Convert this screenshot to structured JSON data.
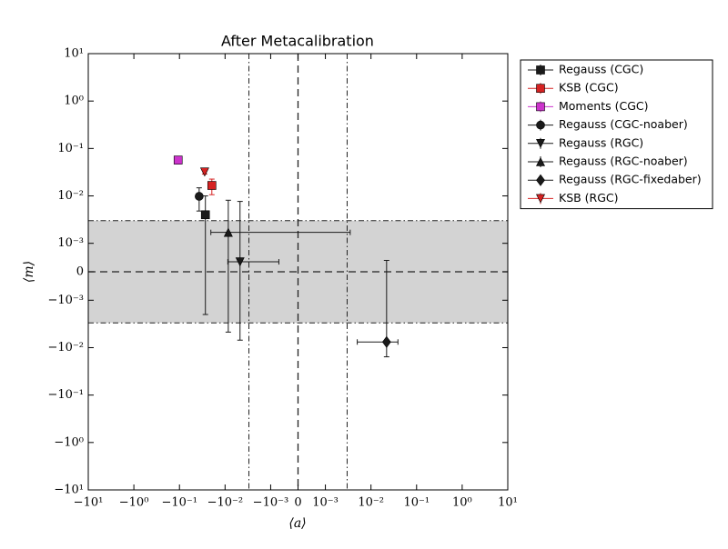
{
  "chart_data": {
    "type": "scatter",
    "title": "After Metacalibration",
    "x_label": "⟨a⟩",
    "y_label": "⟨m⟩",
    "xscale": "symlog",
    "yscale": "symlog",
    "xlim": [
      -10,
      10
    ],
    "ylim": [
      -10,
      10
    ],
    "xticks": [
      {
        "value": -10,
        "label": "−10¹"
      },
      {
        "value": -1,
        "label": "−10⁰"
      },
      {
        "value": -0.1,
        "label": "−10⁻¹"
      },
      {
        "value": -0.01,
        "label": "−10⁻²"
      },
      {
        "value": -0.001,
        "label": "−10⁻³"
      },
      0,
      {
        "value": 0.001,
        "label": "10⁻³"
      },
      {
        "value": 0.01,
        "label": "10⁻²"
      },
      {
        "value": 0.1,
        "label": "10⁻¹"
      },
      {
        "value": 1,
        "label": "10⁰"
      },
      {
        "value": 10,
        "label": "10¹"
      }
    ],
    "yticks": [
      {
        "value": -10,
        "label": "−10¹"
      },
      {
        "value": -1,
        "label": "−10⁰"
      },
      {
        "value": -0.1,
        "label": "−10⁻¹"
      },
      {
        "value": -0.01,
        "label": "−10⁻²"
      },
      {
        "value": -0.001,
        "label": "−10⁻³"
      },
      0,
      {
        "value": 0.001,
        "label": "10⁻³"
      },
      {
        "value": 0.01,
        "label": "10⁻²"
      },
      {
        "value": 0.1,
        "label": "10⁻¹"
      },
      {
        "value": 1,
        "label": "10⁰"
      },
      {
        "value": 10,
        "label": "10¹"
      }
    ],
    "y_band": [
      -0.003,
      0.003
    ],
    "x_dashdot_lines": [
      -0.003,
      0.003
    ],
    "x_dashed_lines": [
      0
    ],
    "y_dashed_lines": [
      0
    ],
    "legend": "upper-right-outside",
    "series": [
      {
        "name": "Regauss (CGC)",
        "color": "#1a1a1a",
        "marker": "square",
        "x": -0.027,
        "y": 0.004,
        "xerr": 0.001,
        "yerr": 0.006
      },
      {
        "name": "KSB (CGC)",
        "color": "#d62222",
        "marker": "square",
        "x": -0.0195,
        "y": 0.0166,
        "xerr": 0.003,
        "yerr": 0.006
      },
      {
        "name": "Moments (CGC)",
        "color": "#cc33cc",
        "marker": "square",
        "x": -0.107,
        "y": 0.057,
        "xerr": 0.005,
        "yerr": 0.01
      },
      {
        "name": "Regauss (CGC-noaber)",
        "color": "#1a1a1a",
        "marker": "circle",
        "x": -0.037,
        "y": 0.0098,
        "xerr": 0.005,
        "yerr": 0.005
      },
      {
        "name": "Regauss (RGC)",
        "color": "#1a1a1a",
        "marker": "triangle-down",
        "x": -0.0047,
        "y": 0.00035,
        "xerr": 0.004,
        "yerr": 0.0073
      },
      {
        "name": "Regauss (RGC-noaber)",
        "color": "#1a1a1a",
        "marker": "triangle-up",
        "x": -0.0085,
        "y": 0.0017,
        "xerr": 0.012,
        "yerr": 0.0064
      },
      {
        "name": "Regauss (RGC-fixedaber)",
        "color": "#1a1a1a",
        "marker": "diamond",
        "x": 0.022,
        "y": -0.0076,
        "xerr": 0.017,
        "yerr": 0.008
      },
      {
        "name": "KSB (RGC)",
        "color": "#d62222",
        "marker": "triangle-down",
        "x": -0.028,
        "y": 0.032,
        "xerr": 0.002,
        "yerr": 0.003
      }
    ]
  }
}
